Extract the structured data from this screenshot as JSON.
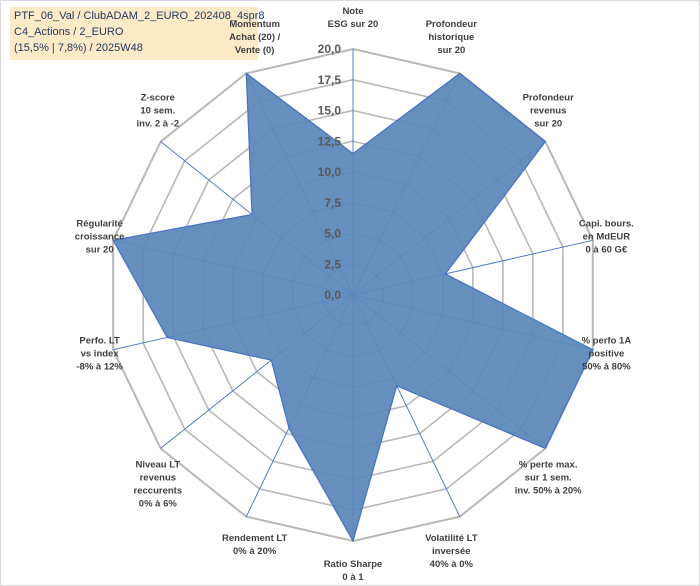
{
  "title_lines": [
    "PTF_06_Val / ClubADAM_2_EURO_202408_4spr8",
    "C4_Actions / 2_EURO",
    "(15,5% | 7,8%) / 2025W48"
  ],
  "colors": {
    "fill": "#5b87b9",
    "stroke": "#4472c4",
    "grid": "#b8b8b8",
    "spoke": "#4472c4",
    "title_bg": "#fdebc8"
  },
  "chart_data": {
    "type": "radar",
    "rmax": 20,
    "ticks": [
      "0,0",
      "2,5",
      "5,0",
      "7,5",
      "10,0",
      "12,5",
      "15,0",
      "17,5",
      "20,0"
    ],
    "axes": [
      {
        "label": [
          "Note",
          "ESG sur 20"
        ],
        "value": 11.5
      },
      {
        "label": [
          "Profondeur",
          "historique",
          "sur 20"
        ],
        "value": 20
      },
      {
        "label": [
          "Profondeur",
          "revenus",
          "sur 20"
        ],
        "value": 20
      },
      {
        "label": [
          "Capi. bours.",
          "en MdEUR",
          "0 à 60 G€"
        ],
        "value": 7.7
      },
      {
        "label": [
          "% perfo 1A",
          "positive",
          "50% à 80%"
        ],
        "value": 20
      },
      {
        "label": [
          "% perte max.",
          "sur 1 sem.",
          "inv. 50% à 20%"
        ],
        "value": 20
      },
      {
        "label": [
          "Volatilité LT",
          "inversée",
          "40% à 0%"
        ],
        "value": 8.2
      },
      {
        "label": [
          "Ratio Sharpe",
          "0 à 1"
        ],
        "value": 20
      },
      {
        "label": [
          "Rendement LT",
          "0% à 20%"
        ],
        "value": 12
      },
      {
        "label": [
          "Niveau LT",
          "revenus",
          "reccurents",
          "0% à 6%"
        ],
        "value": 8.5
      },
      {
        "label": [
          "Perfo. LT",
          "vs index",
          "-8% à 12%"
        ],
        "value": 15.5
      },
      {
        "label": [
          "Régularité",
          "croissance",
          "sur 20"
        ],
        "value": 20
      },
      {
        "label": [
          "Z-score",
          "10 sem.",
          "inv. 2 à -2"
        ],
        "value": 10.5
      },
      {
        "label": [
          "Momentum",
          "Achat (20) /",
          "Vente (0)"
        ],
        "value": 20
      }
    ]
  }
}
